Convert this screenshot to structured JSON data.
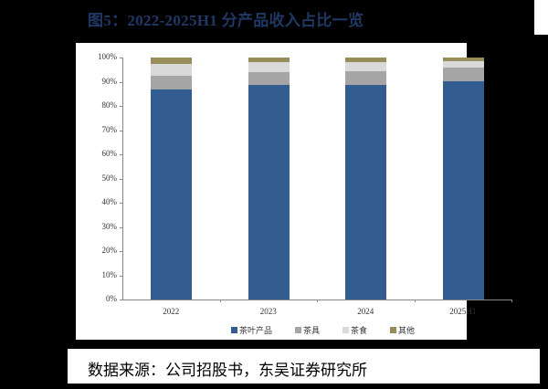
{
  "title": "图5：2022-2025H1 分产品收入占比一览",
  "source": "数据来源：公司招股书，东吴证券研究所",
  "colors": {
    "tea_products": "#335c91",
    "tea_ware": "#a5a5a5",
    "tea_food": "#d9d9d9",
    "other": "#978d5a",
    "title": "#1f3864"
  },
  "chart_data": {
    "type": "bar",
    "stacked": true,
    "title": "2022-2025H1 分产品收入占比一览",
    "categories": [
      "2022",
      "2023",
      "2024",
      "2025H1"
    ],
    "series": [
      {
        "name": "茶叶产品",
        "values": [
          86.7,
          88.7,
          88.8,
          90.1
        ]
      },
      {
        "name": "茶具",
        "values": [
          5.7,
          5.3,
          5.7,
          5.7
        ]
      },
      {
        "name": "茶食",
        "values": [
          5.0,
          4.2,
          3.8,
          2.6
        ]
      },
      {
        "name": "其他",
        "values": [
          2.6,
          1.8,
          1.7,
          1.6
        ]
      }
    ],
    "xlabel": "",
    "ylabel": "",
    "ylim": [
      0,
      100
    ],
    "yticks": [
      "0%",
      "10%",
      "20%",
      "30%",
      "40%",
      "50%",
      "60%",
      "70%",
      "80%",
      "90%",
      "100%"
    ],
    "legend_position": "bottom",
    "grid": false
  },
  "legend": [
    "茶叶产品",
    "茶具",
    "茶食",
    "其他"
  ]
}
